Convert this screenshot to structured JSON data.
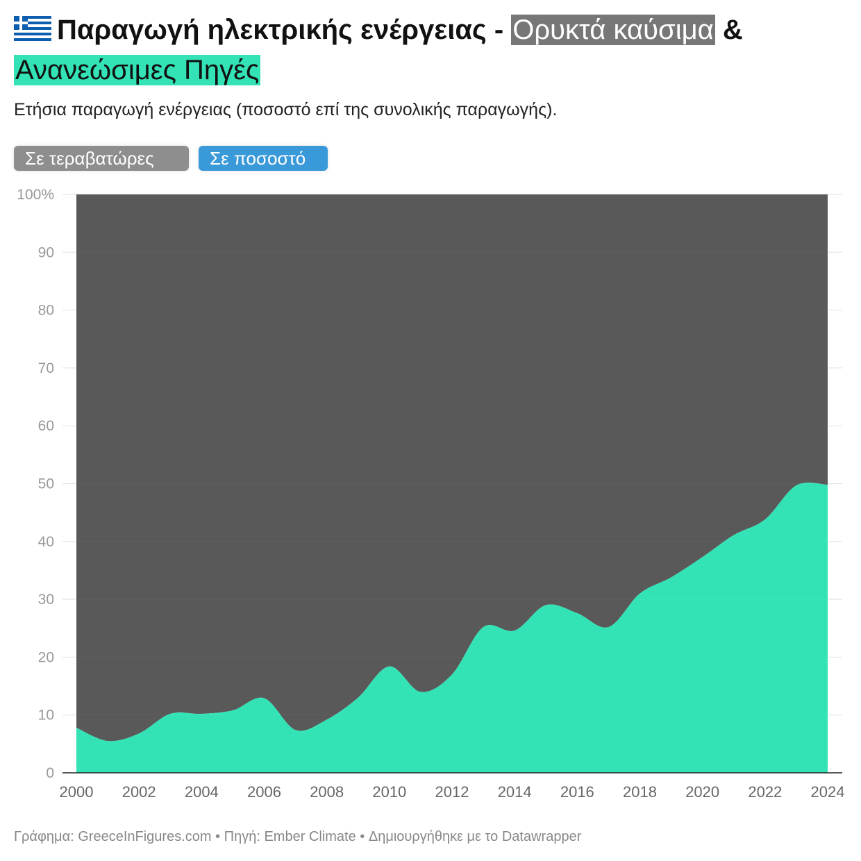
{
  "header": {
    "flag_icon": "greece-flag-icon",
    "title_prefix": "Παραγωγή ηλεκτρικής ενέργειας -",
    "title_fossil": "Ορυκτά καύσιμα",
    "title_amp": "&",
    "title_renew": "Ανανεώσιμες Πηγές",
    "subtitle": "Ετήσια παραγωγή ενέργειας (ποσοστό επί της συνολικής παραγωγής)."
  },
  "toggles": {
    "terawatt_label": "Σε τεραβατώρες",
    "percent_label": "Σε ποσοστό",
    "selected": "percent"
  },
  "colors": {
    "fossil": "#595959",
    "renewables": "#33e3b6",
    "toggle_inactive": "#8e8e8e",
    "toggle_active": "#3a9ad9",
    "title_fossil_bg": "#777777"
  },
  "chart_data": {
    "type": "area",
    "stacked": true,
    "x": [
      2000,
      2001,
      2002,
      2003,
      2004,
      2005,
      2006,
      2007,
      2008,
      2009,
      2010,
      2011,
      2012,
      2013,
      2014,
      2015,
      2016,
      2017,
      2018,
      2019,
      2020,
      2021,
      2022,
      2023,
      2024
    ],
    "series": [
      {
        "key": "renewables",
        "values": [
          7.8,
          5.5,
          6.8,
          10.2,
          10.2,
          10.8,
          12.9,
          7.4,
          9.2,
          13.0,
          18.4,
          14.0,
          17.0,
          25.2,
          24.6,
          29.0,
          27.6,
          25.2,
          31.0,
          33.8,
          37.3,
          41.1,
          43.8,
          49.7,
          49.8
        ]
      },
      {
        "key": "fossil",
        "values": [
          92.2,
          94.5,
          93.2,
          89.8,
          89.8,
          89.2,
          87.1,
          92.6,
          90.8,
          87.0,
          81.6,
          86.0,
          83.0,
          74.8,
          75.4,
          71.0,
          72.4,
          74.8,
          69.0,
          66.2,
          62.7,
          58.9,
          56.2,
          50.3,
          50.2
        ]
      }
    ],
    "ylim": [
      0,
      100
    ],
    "yticks": [
      0,
      10,
      20,
      30,
      40,
      50,
      60,
      70,
      80,
      90,
      100
    ],
    "ytick_labels": [
      "0",
      "10",
      "20",
      "30",
      "40",
      "50",
      "60",
      "70",
      "80",
      "90",
      "100%"
    ],
    "xticks": [
      2000,
      2002,
      2004,
      2006,
      2008,
      2010,
      2012,
      2014,
      2016,
      2018,
      2020,
      2022,
      2024
    ],
    "xtick_labels": [
      "2000",
      "2002",
      "2004",
      "2006",
      "2008",
      "2010",
      "2012",
      "2014",
      "2016",
      "2018",
      "2020",
      "2022",
      "2024"
    ],
    "grid": true
  },
  "footer": {
    "credits": "Γράφημα: GreeceInFigures.com • Πηγή: Ember Climate • Δημιουργήθηκε με το Datawrapper"
  }
}
